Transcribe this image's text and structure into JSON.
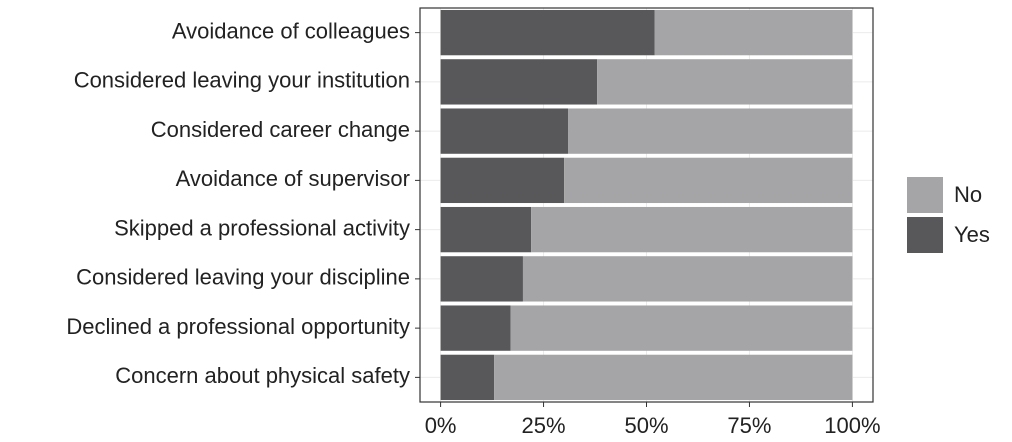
{
  "chart_data": {
    "type": "stacked-bar-horizontal",
    "categories": [
      "Avoidance of colleagues",
      "Considered leaving your institution",
      "Considered career change",
      "Avoidance of supervisor",
      "Skipped a professional activity",
      "Considered leaving your discipline",
      "Declined a professional opportunity",
      "Concern about physical safety"
    ],
    "series": [
      {
        "name": "Yes",
        "color": "#58585a",
        "values": [
          52,
          38,
          31,
          30,
          22,
          20,
          17,
          13
        ]
      },
      {
        "name": "No",
        "color": "#a5a5a7",
        "values": [
          48,
          62,
          69,
          70,
          78,
          80,
          83,
          87
        ]
      }
    ],
    "xlim": [
      -5,
      105
    ],
    "xticks": [
      {
        "value": 0,
        "label": "0%"
      },
      {
        "value": 25,
        "label": "25%"
      },
      {
        "value": 50,
        "label": "50%"
      },
      {
        "value": 75,
        "label": "75%"
      },
      {
        "value": 100,
        "label": "100%"
      }
    ],
    "grid": true,
    "legend": "right"
  }
}
